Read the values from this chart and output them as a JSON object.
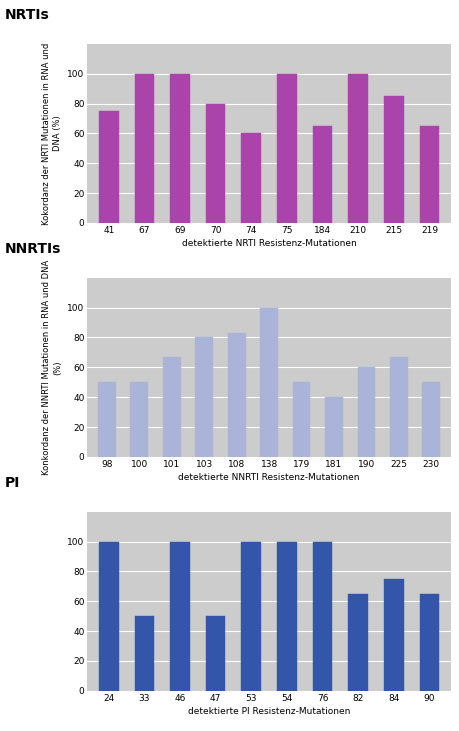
{
  "nrti": {
    "title": "NRTIs",
    "categories": [
      "41",
      "67",
      "69",
      "70",
      "74",
      "75",
      "184",
      "210",
      "215",
      "219"
    ],
    "values": [
      75,
      100,
      100,
      80,
      60,
      100,
      65,
      100,
      85,
      65
    ],
    "bar_color": "#aa44aa",
    "ylabel": "Kokordanz der NRTI Mutationen in RNA und\nDNA (%)",
    "xlabel": "detektierte NRTI Resistenz-Mutationen",
    "ylim": [
      0,
      120
    ],
    "yticks": [
      0,
      20,
      40,
      60,
      80,
      100
    ]
  },
  "nnrti": {
    "title": "NNRTIs",
    "categories": [
      "98",
      "100",
      "101",
      "103",
      "108",
      "138",
      "179",
      "181",
      "190",
      "225",
      "230"
    ],
    "values": [
      50,
      50,
      67,
      80,
      83,
      100,
      50,
      40,
      60,
      67,
      50
    ],
    "bar_color": "#aab4d8",
    "ylabel": "Konkordanz der NNRTI Mutationen in RNA und DNA\n(%)",
    "xlabel": "detektierte NNRTI Resistenz-Mutationen",
    "ylim": [
      0,
      120
    ],
    "yticks": [
      0,
      20,
      40,
      60,
      80,
      100
    ]
  },
  "pi": {
    "title": "PI",
    "categories": [
      "24",
      "33",
      "46",
      "47",
      "53",
      "54",
      "76",
      "82",
      "84",
      "90"
    ],
    "values": [
      100,
      50,
      100,
      50,
      100,
      100,
      100,
      65,
      75,
      65
    ],
    "bar_color": "#3355aa",
    "ylabel": "",
    "xlabel": "detektierte PI Resistenz-Mutationen",
    "ylim": [
      0,
      120
    ],
    "yticks": [
      0,
      20,
      40,
      60,
      80,
      100
    ]
  },
  "bg_color": "#cccccc",
  "fig_bg": "#ffffff",
  "title_fontsize": 10,
  "label_fontsize": 6.5,
  "tick_fontsize": 6.5,
  "ylabel_fontsize": 6.0,
  "bar_width": 0.55
}
